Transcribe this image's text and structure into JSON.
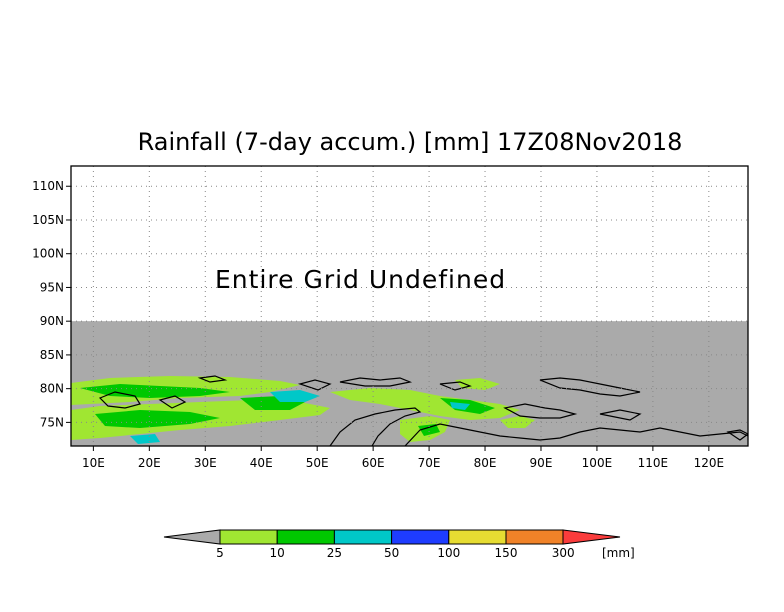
{
  "map": {
    "title": "Rainfall (7-day accum.) [mm] 17Z08Nov2018",
    "undefined_message": "Entire Grid Undefined",
    "lat_labels": [
      "110N",
      "105N",
      "100N",
      "95N",
      "90N",
      "85N",
      "80N",
      "75N"
    ],
    "lat_values": [
      110,
      105,
      100,
      95,
      90,
      85,
      80,
      75
    ],
    "lon_labels": [
      "10E",
      "20E",
      "30E",
      "40E",
      "50E",
      "60E",
      "70E",
      "80E",
      "90E",
      "100E",
      "110E",
      "120E"
    ],
    "lon_values": [
      10,
      20,
      30,
      40,
      50,
      60,
      70,
      80,
      90,
      100,
      110,
      120
    ],
    "lat_range": [
      71.5,
      113
    ],
    "lon_range": [
      6,
      127
    ],
    "undefined_region_color": "#aaaaaa"
  },
  "colorbar": {
    "units": "[mm]",
    "labels": [
      "5",
      "10",
      "25",
      "50",
      "100",
      "150",
      "300"
    ],
    "colors": {
      "below": "#aaaaaa",
      "bins": [
        "#a0e632",
        "#00c800",
        "#00c8c8",
        "#1e3cff",
        "#e6dc32",
        "#f08228"
      ],
      "above": "#fa3c3c"
    }
  }
}
